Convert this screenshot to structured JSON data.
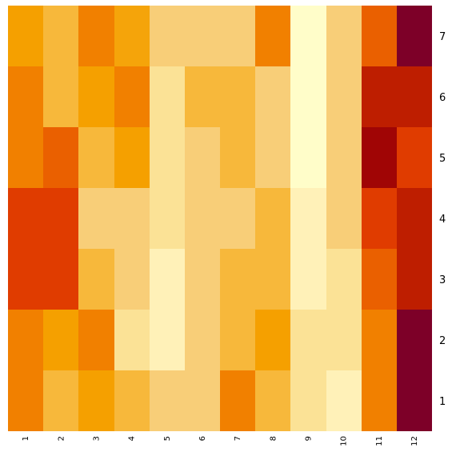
{
  "chart_data": {
    "type": "heatmap",
    "title": "",
    "xlabel": "",
    "ylabel": "",
    "x_categories": [
      "1",
      "2",
      "3",
      "4",
      "5",
      "6",
      "7",
      "8",
      "9",
      "10",
      "11",
      "12"
    ],
    "y_categories": [
      "7",
      "6",
      "5",
      "4",
      "3",
      "2",
      "1"
    ],
    "value_range": [
      0,
      100
    ],
    "colormap": "YlOrRd",
    "legend": "none",
    "grid": false,
    "values": [
      [
        55,
        43,
        60,
        53,
        34,
        34,
        34,
        60,
        2,
        34,
        66,
        98
      ],
      [
        60,
        43,
        55,
        60,
        26,
        43,
        43,
        34,
        2,
        34,
        85,
        85
      ],
      [
        60,
        66,
        43,
        55,
        26,
        34,
        43,
        34,
        2,
        34,
        90,
        75
      ],
      [
        75,
        75,
        34,
        34,
        26,
        34,
        34,
        43,
        14,
        34,
        75,
        85
      ],
      [
        75,
        75,
        43,
        34,
        14,
        34,
        43,
        43,
        14,
        26,
        66,
        85
      ],
      [
        60,
        55,
        60,
        26,
        14,
        34,
        43,
        55,
        26,
        26,
        60,
        98
      ],
      [
        60,
        43,
        55,
        43,
        34,
        34,
        60,
        43,
        26,
        14,
        60,
        98
      ]
    ]
  }
}
